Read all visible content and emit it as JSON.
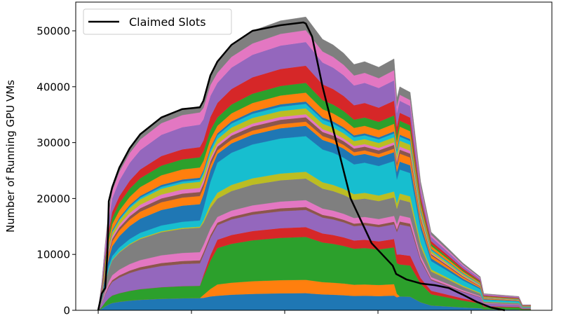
{
  "chart_data": {
    "type": "area",
    "stacked": true,
    "title": "",
    "xlabel": "",
    "ylabel": "Number of Running GPU VMs",
    "xlim": [
      -0.241,
      4.865
    ],
    "ylim": [
      0,
      55000
    ],
    "x_ticks": [
      0,
      1,
      2,
      3,
      4
    ],
    "x_tick_labels": [
      "",
      "",
      "",
      "",
      ""
    ],
    "y_ticks": [
      0,
      10000,
      20000,
      30000,
      40000,
      50000
    ],
    "y_tick_labels": [
      "0",
      "10000",
      "20000",
      "30000",
      "40000",
      "50000"
    ],
    "grid": false,
    "legend": {
      "position": "top-left",
      "entries": [
        {
          "label": "Claimed Slots",
          "color": "#000000"
        }
      ]
    },
    "x": [
      0,
      0.038,
      0.075,
      0.113,
      0.15,
      0.226,
      0.338,
      0.451,
      0.677,
      0.902,
      1.09,
      1.128,
      1.203,
      1.278,
      1.429,
      1.654,
      1.955,
      2.226,
      2.293,
      2.406,
      2.519,
      2.632,
      2.744,
      2.857,
      3.008,
      3.173,
      3.203,
      3.233,
      3.346,
      3.459,
      3.571,
      3.759,
      3.91,
      4.098,
      4.135,
      4.511,
      4.549,
      4.639
    ],
    "stack_total": [
      0,
      5000,
      12000,
      18000,
      22000,
      25500,
      29000,
      31500,
      34500,
      36000,
      36500,
      37500,
      42000,
      44500,
      47500,
      50000,
      51800,
      52500,
      51000,
      48500,
      47500,
      46000,
      44000,
      44500,
      43500,
      45000,
      38000,
      40000,
      39000,
      23000,
      14000,
      11000,
      8500,
      6000,
      3000,
      2500,
      1000,
      1000
    ],
    "phase": [
      0,
      0,
      0,
      0,
      0,
      0,
      0,
      0,
      0,
      0,
      0,
      0.3,
      0.7,
      1,
      1,
      1,
      1,
      1,
      1,
      1,
      1,
      1,
      1,
      1,
      1,
      1,
      1.6,
      2,
      2,
      2,
      2,
      2,
      2,
      2,
      2,
      2,
      2,
      2
    ],
    "layers": [
      {
        "color": "#1f77b4",
        "share": [
          0.06,
          0.058,
          0.07
        ]
      },
      {
        "color": "#ff7f0e",
        "share": [
          0,
          0.045,
          0
        ]
      },
      {
        "color": "#2ca02c",
        "share": [
          0.06,
          0.145,
          0.16
        ]
      },
      {
        "color": "#d62728",
        "share": [
          0,
          0.033,
          0.05
        ]
      },
      {
        "color": "#9467bd",
        "share": [
          0.11,
          0.058,
          0.15
        ]
      },
      {
        "color": "#8c564b",
        "share": [
          0.015,
          0.01,
          0.015
        ]
      },
      {
        "color": "#e377c2",
        "share": [
          0.04,
          0.023,
          0.03
        ]
      },
      {
        "color": "#7f7f7f",
        "share": [
          0.12,
          0.073,
          0.08
        ]
      },
      {
        "color": "#bcbd22",
        "share": [
          0.005,
          0.023,
          0.03
        ]
      },
      {
        "color": "#17becf",
        "share": [
          0.03,
          0.12,
          0.12
        ]
      },
      {
        "color": "#1f77b4",
        "share": [
          0.08,
          0.035,
          0.04
        ]
      },
      {
        "color": "#ff7f0e",
        "share": [
          0.04,
          0.014,
          0.04
        ]
      },
      {
        "color": "#8c564b",
        "share": [
          0.02,
          0.015,
          0.02
        ]
      },
      {
        "color": "#e377c2",
        "share": [
          0.02,
          0.01,
          0.015
        ]
      },
      {
        "color": "#bcbd22",
        "share": [
          0.03,
          0.02,
          0.03
        ]
      },
      {
        "color": "#17becf",
        "share": [
          0.01,
          0.015,
          0.02
        ]
      },
      {
        "color": "#1f77b4",
        "share": [
          0.01,
          0.008,
          0.01
        ]
      },
      {
        "color": "#ff7f0e",
        "share": [
          0.05,
          0.03,
          0.04
        ]
      },
      {
        "color": "#2ca02c",
        "share": [
          0.05,
          0.033,
          0.03
        ]
      },
      {
        "color": "#d62728",
        "share": [
          0.05,
          0.058,
          0.04
        ]
      },
      {
        "color": "#9467bd",
        "share": [
          0.11,
          0.08,
          0.06
        ]
      },
      {
        "color": "#e377c2",
        "share": [
          0.06,
          0.04,
          0.03
        ]
      },
      {
        "color": "#7f7f7f",
        "share": [
          0.03,
          0.045,
          0.04
        ]
      }
    ],
    "series": [
      {
        "name": "Claimed Slots",
        "color": "#000000",
        "x": [
          0,
          0.038,
          0.075,
          0.098,
          0.113,
          0.15,
          0.226,
          0.338,
          0.451,
          0.677,
          0.902,
          1.09,
          1.128,
          1.203,
          1.278,
          1.429,
          1.654,
          1.955,
          2.2,
          2.226,
          2.293,
          2.406,
          2.556,
          2.707,
          2.932,
          3.158,
          3.195,
          3.308,
          3.459,
          3.609,
          3.759,
          3.91,
          4.06,
          4.211,
          4.361
        ],
        "y": [
          0,
          3000,
          4000,
          10000,
          19500,
          22000,
          25500,
          29000,
          31500,
          34500,
          36000,
          36300,
          37500,
          42000,
          44500,
          47500,
          50000,
          51000,
          51500,
          51300,
          49000,
          40000,
          30000,
          20000,
          12000,
          8000,
          6500,
          5500,
          4800,
          4500,
          4000,
          2800,
          1500,
          500,
          0
        ]
      }
    ]
  }
}
